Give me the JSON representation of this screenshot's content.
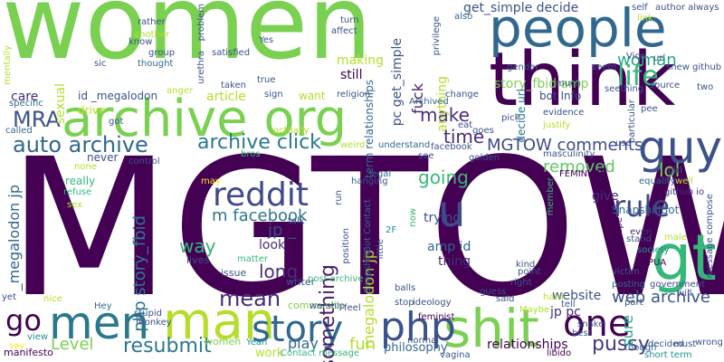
{
  "background": "#ffffff",
  "palette": {
    "navy": "#440154",
    "indigo": "#3b528b",
    "blue": "#31688e",
    "teal": "#21918c",
    "green": "#35b779",
    "lime": "#90d743",
    "yellow": "#e0e318"
  },
  "words": [
    {
      "text": "MGTOW",
      "color": "#440154"
    },
    {
      "text": "women",
      "color": "#7ad151"
    },
    {
      "text": "think",
      "color": "#440154"
    },
    {
      "text": "people",
      "color": "#31688e"
    },
    {
      "text": "archive org",
      "color": "#7ad151"
    },
    {
      "text": "guy",
      "color": "#3b528b"
    },
    {
      "text": "gt",
      "color": "#35b779"
    },
    {
      "text": "men",
      "color": "#2a788e"
    },
    {
      "text": "man",
      "color": "#b5de2b"
    },
    {
      "text": "shit",
      "color": "#7ad151"
    },
    {
      "text": "php",
      "color": "#3b528b"
    },
    {
      "text": "story",
      "color": "#31688e"
    },
    {
      "text": "one",
      "color": "#440154"
    },
    {
      "text": "u",
      "color": "#3e4a89"
    },
    {
      "text": "reddit",
      "color": "#3e4a89"
    },
    {
      "text": "auto archive",
      "color": "#31688e"
    },
    {
      "text": "archive click",
      "color": "#2a788e"
    },
    {
      "text": "MRA",
      "color": "#3b528b"
    },
    {
      "text": "make",
      "color": "#472d7b"
    },
    {
      "text": "time",
      "color": "#472d7b"
    },
    {
      "text": "life",
      "color": "#35b779"
    },
    {
      "text": "woman",
      "color": "#22a884"
    },
    {
      "text": "rule",
      "color": "#414487"
    },
    {
      "text": "go",
      "color": "#440154"
    },
    {
      "text": "MGTOW comments",
      "color": "#3e4a89"
    },
    {
      "text": "removed",
      "color": "#5ec962"
    },
    {
      "text": "going",
      "color": "#35b779"
    },
    {
      "text": "lol",
      "color": "#7ad151"
    },
    {
      "text": "Level",
      "color": "#7ad151"
    },
    {
      "text": "resubmit",
      "color": "#2a788e"
    },
    {
      "text": "web archive",
      "color": "#3b528b"
    },
    {
      "text": "pussy",
      "color": "#443983"
    },
    {
      "text": "mean",
      "color": "#472d7b"
    },
    {
      "text": "fun",
      "color": "#b5de2b"
    },
    {
      "text": "play",
      "color": "#31688e"
    },
    {
      "text": "long",
      "color": "#472d7b"
    },
    {
      "text": "m facebook",
      "color": "#2a788e"
    },
    {
      "text": "something",
      "color": "#481a6c"
    },
    {
      "text": "way",
      "color": "#35b779"
    },
    {
      "text": "jp _",
      "color": "#3e4a89"
    },
    {
      "text": "php story_fbid",
      "color": "#2a788e"
    },
    {
      "text": "_megalodon jp",
      "color": "#31688e"
    },
    {
      "text": "megalodon jp",
      "color": "#b5de2b"
    },
    {
      "text": "sure",
      "color": "#22a884"
    },
    {
      "text": "story_fbid amp",
      "color": "#7ad151"
    },
    {
      "text": "get_simple decide",
      "color": "#3b528b"
    },
    {
      "text": "pc get_simple",
      "color": "#3b528b"
    },
    {
      "text": "fuck",
      "color": "#481a6c"
    },
    {
      "text": "anything",
      "color": "#b5de2b"
    },
    {
      "text": "bot Info",
      "color": "#3e4a89"
    },
    {
      "text": "decide url",
      "color": "#2a788e"
    },
    {
      "text": "making",
      "color": "#b5de2b"
    },
    {
      "text": "still",
      "color": "#440154"
    },
    {
      "text": "article",
      "color": "#b5de2b"
    },
    {
      "text": "care",
      "color": "#472d7b"
    },
    {
      "text": "sexual",
      "color": "#b5de2b"
    },
    {
      "text": "id _megalodon",
      "color": "#3b528b"
    },
    {
      "text": "term relationships",
      "color": "#31688e"
    },
    {
      "text": "want",
      "color": "#b5de2b"
    },
    {
      "text": "relationships",
      "color": "#440154"
    },
    {
      "text": "philosophy",
      "color": "#31688e"
    },
    {
      "text": "website",
      "color": "#3b528b"
    },
    {
      "text": "jp pc",
      "color": "#472d7b"
    },
    {
      "text": "amp id",
      "color": "#31688e"
    },
    {
      "text": "thing",
      "color": "#472d7b"
    },
    {
      "text": "trying",
      "color": "#3b528b"
    },
    {
      "text": "give",
      "color": "#472d7b"
    },
    {
      "text": "SnapshillBot",
      "color": "#31688e"
    },
    {
      "text": "look",
      "color": "#472d7b"
    },
    {
      "text": "drive",
      "color": "#b5de2b"
    },
    {
      "text": "never",
      "color": "#3b528b"
    },
    {
      "text": "really",
      "color": "#35b779"
    },
    {
      "text": "work",
      "color": "#b5de2b"
    },
    {
      "text": "Yeah",
      "color": "#21918c"
    },
    {
      "text": "community",
      "color": "#7ad151"
    },
    {
      "text": "writer",
      "color": "#3b528b"
    },
    {
      "text": "issue",
      "color": "#3b528b"
    },
    {
      "text": "lives",
      "color": "#3b528b"
    },
    {
      "text": "women",
      "color": "#7ad151"
    },
    {
      "text": "Hey",
      "color": "#31688e"
    },
    {
      "text": "stupid",
      "color": "#3b528b"
    },
    {
      "text": "monkey",
      "color": "#3b528b"
    },
    {
      "text": "manifesto",
      "color": "#440154"
    },
    {
      "text": "view",
      "color": "#21918c"
    },
    {
      "text": "say",
      "color": "#fde725"
    },
    {
      "text": "nice",
      "color": "#b5de2b"
    },
    {
      "text": "yet",
      "color": "#3b528b"
    },
    {
      "text": "worship",
      "color": "#3b528b"
    },
    {
      "text": "Contact message",
      "color": "#35b779"
    },
    {
      "text": "post archive",
      "color": "#35b779"
    },
    {
      "text": "matter",
      "color": "#35b779"
    },
    {
      "text": "talk",
      "color": "#3b528b"
    },
    {
      "text": "refuse",
      "color": "#35b779"
    },
    {
      "text": "sex",
      "color": "#b5de2b"
    },
    {
      "text": "none",
      "color": "#b5de2b"
    },
    {
      "text": "may",
      "color": "#fde725"
    },
    {
      "text": "control",
      "color": "#3b528b"
    },
    {
      "text": "bros",
      "color": "#35b779"
    },
    {
      "text": "weird",
      "color": "#b5de2b"
    },
    {
      "text": "legal",
      "color": "#31688e"
    },
    {
      "text": "hanging",
      "color": "#3b528b"
    },
    {
      "text": "run",
      "color": "#3b528b"
    },
    {
      "text": "position",
      "color": "#3b528b"
    },
    {
      "text": "SnapshillBot Contact",
      "color": "#31688e"
    },
    {
      "text": "little",
      "color": "#3b528b"
    },
    {
      "text": "ideology",
      "color": "#3b528b"
    },
    {
      "text": "now",
      "color": "#35b779"
    },
    {
      "text": "2F",
      "color": "#21918c"
    },
    {
      "text": "see",
      "color": "#3b528b"
    },
    {
      "text": "golden",
      "color": "#3b528b"
    },
    {
      "text": "goes",
      "color": "#3b528b"
    },
    {
      "text": "facebook",
      "color": "#3b528b"
    },
    {
      "text": "understand",
      "color": "#31688e"
    },
    {
      "text": "pick",
      "color": "#3b528b"
    },
    {
      "text": "eat",
      "color": "#3b528b"
    },
    {
      "text": "masculinity",
      "color": "#3b528b"
    },
    {
      "text": "justify",
      "color": "#b5de2b"
    },
    {
      "text": "FEMINISM",
      "color": "#440154"
    },
    {
      "text": "equality",
      "color": "#31688e"
    },
    {
      "text": "evidence",
      "color": "#3b528b"
    },
    {
      "text": "member",
      "color": "#35b779"
    },
    {
      "text": "even",
      "color": "#472d7b"
    },
    {
      "text": "github io",
      "color": "#472d7b"
    },
    {
      "text": "girl",
      "color": "#3b528b"
    },
    {
      "text": "well",
      "color": "#b5de2b"
    },
    {
      "text": "rape",
      "color": "#440154"
    },
    {
      "text": "stand",
      "color": "#3b528b"
    },
    {
      "text": "male",
      "color": "#b5de2b"
    },
    {
      "text": "society",
      "color": "#21918c"
    },
    {
      "text": "message compose",
      "color": "#3b528b"
    },
    {
      "text": "PUA",
      "color": "#440154"
    },
    {
      "text": "victim",
      "color": "#3b528b"
    },
    {
      "text": "posting",
      "color": "#31688e"
    },
    {
      "text": "part",
      "color": "#3b528b"
    },
    {
      "text": "government",
      "color": "#3b528b"
    },
    {
      "text": "will",
      "color": "#3b528b"
    },
    {
      "text": "must",
      "color": "#3b528b"
    },
    {
      "text": "wrong",
      "color": "#3b528b"
    },
    {
      "text": "best",
      "color": "#3b528b"
    },
    {
      "text": "snake",
      "color": "#3b528b"
    },
    {
      "text": "decided",
      "color": "#3b528b"
    },
    {
      "text": "though",
      "color": "#31688e"
    },
    {
      "text": "short term",
      "color": "#21918c"
    },
    {
      "text": "libido",
      "color": "#440154"
    },
    {
      "text": "vagina",
      "color": "#3b528b"
    },
    {
      "text": "feminist",
      "color": "#440154"
    },
    {
      "text": "Maybe",
      "color": "#b5de2b"
    },
    {
      "text": "stop",
      "color": "#3b528b"
    },
    {
      "text": "normal",
      "color": "#3b528b"
    },
    {
      "text": "feel",
      "color": "#3b528b"
    },
    {
      "text": "balls",
      "color": "#3b528b"
    },
    {
      "text": "said",
      "color": "#3b528b"
    },
    {
      "text": "guess",
      "color": "#3b528b"
    },
    {
      "text": "hard",
      "color": "#b5de2b"
    },
    {
      "text": "tell",
      "color": "#3b528b"
    },
    {
      "text": "kind",
      "color": "#3b528b"
    },
    {
      "text": "point",
      "color": "#3b528b"
    },
    {
      "text": "right",
      "color": "#3b528b"
    },
    {
      "text": "actually",
      "color": "#b5de2b"
    },
    {
      "text": "got",
      "color": "#3b528b"
    },
    {
      "text": "called",
      "color": "#31688e"
    },
    {
      "text": "specific",
      "color": "#31688e"
    },
    {
      "text": "mentally",
      "color": "#b5de2b"
    },
    {
      "text": "sic",
      "color": "#3b528b"
    },
    {
      "text": "know",
      "color": "#3b528b"
    },
    {
      "text": "another",
      "color": "#b5de2b"
    },
    {
      "text": "rather",
      "color": "#3b528b"
    },
    {
      "text": "group",
      "color": "#3b528b"
    },
    {
      "text": "thought",
      "color": "#31688e"
    },
    {
      "text": "problem",
      "color": "#3b528b"
    },
    {
      "text": "urethra",
      "color": "#3b528b"
    },
    {
      "text": "satisfied",
      "color": "#3b528b"
    },
    {
      "text": "Yes",
      "color": "#3b528b"
    },
    {
      "text": "true",
      "color": "#3b528b"
    },
    {
      "text": "sign",
      "color": "#3b528b"
    },
    {
      "text": "taken",
      "color": "#3b528b"
    },
    {
      "text": "anger",
      "color": "#b5de2b"
    },
    {
      "text": "turn",
      "color": "#3b528b"
    },
    {
      "text": "affect",
      "color": "#3b528b"
    },
    {
      "text": "religion",
      "color": "#3b528b"
    },
    {
      "text": "Archived",
      "color": "#31688e"
    },
    {
      "text": "change",
      "color": "#3b528b"
    },
    {
      "text": "privilege",
      "color": "#3b528b"
    },
    {
      "text": "also",
      "color": "#31688e"
    },
    {
      "text": "link",
      "color": "#b5de2b"
    },
    {
      "text": "self",
      "color": "#3b528b"
    },
    {
      "text": "author always",
      "color": "#3b528b"
    },
    {
      "text": "Vice",
      "color": "#3b528b"
    },
    {
      "text": "url",
      "color": "#3b528b"
    },
    {
      "text": "snew github",
      "color": "#3b528b"
    },
    {
      "text": "gender",
      "color": "#3b528b"
    },
    {
      "text": "seem",
      "color": "#3b528b"
    },
    {
      "text": "much",
      "color": "#3b528b"
    },
    {
      "text": "seething",
      "color": "#3b528b"
    },
    {
      "text": "source",
      "color": "#3b528b"
    },
    {
      "text": "two",
      "color": "#3b528b"
    },
    {
      "text": "particular",
      "color": "#3b528b"
    },
    {
      "text": "pee",
      "color": "#3b528b"
    },
    {
      "text": "use",
      "color": "#3b528b"
    }
  ]
}
